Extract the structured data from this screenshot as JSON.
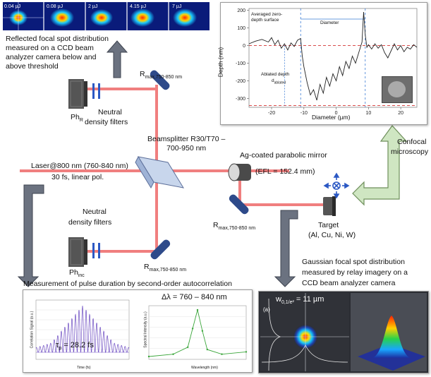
{
  "ccd_strip": {
    "labels": [
      "0.04 µJ",
      "0.08 µJ",
      "2 µJ",
      "4.15 µJ",
      "7 µJ"
    ]
  },
  "captions": {
    "reflected": [
      "Reflected focal spot distribution",
      "measured on a CCD beam",
      "analyzer camera below and",
      "above threshold"
    ],
    "beamsplitter": [
      "Beamsplitter R30/T70 –",
      "700-950 nm"
    ],
    "laser": [
      "Laser@800 nm (760-840 nm)",
      "30 fs, linear pol."
    ],
    "mirror": [
      "Ag-coated parabolic mirror",
      "(EFL = 152.4 mm)"
    ],
    "confocal": [
      "Confocal",
      "microscopy"
    ],
    "target": [
      "Target",
      "(Al, Cu, Ni, W)"
    ],
    "gaussian": [
      "Gaussian focal spot distribution",
      "measured by relay imagery on a",
      "CCD beam analyzer camera"
    ],
    "autocorrelation": "Measurement of pulse duration by second-order autocorrelation"
  },
  "components": {
    "nd_top": [
      "Neutral",
      "density filters"
    ],
    "nd_bottom": [
      "Neutral",
      "density filters"
    ],
    "ph_r": {
      "main": "Ph",
      "sub": "R"
    },
    "ph_inc": {
      "main": "Ph",
      "sub": "inc"
    },
    "rmax_top": {
      "main": "R",
      "sub": "max,750-850 nm"
    },
    "rmax_mid": {
      "main": "R",
      "sub": "max,750-850 nm"
    },
    "rmax_bottom": {
      "main": "R",
      "sub": "max,750-850 nm"
    }
  },
  "depth_plot": {
    "ylabel": "Depth (nm)",
    "xlabel": "Diameter (µm)",
    "annotations": {
      "zero_surface": [
        "Averaged zero-",
        "depth surface"
      ],
      "diameter": "Diameter",
      "ablated": [
        "Ablated depth",
        "d"
      ],
      "ablated_sub": "ablated"
    },
    "yticks": [
      "200",
      "100",
      "0",
      "-100",
      "-200",
      "-300"
    ],
    "xticks": [
      "-20",
      "-10",
      "0",
      "10",
      "20"
    ]
  },
  "chart_data": [
    {
      "type": "line",
      "title": "",
      "xlabel": "Diameter (µm)",
      "ylabel": "Depth (nm)",
      "xlim": [
        -27,
        25
      ],
      "ylim": [
        -350,
        210
      ],
      "x": [
        -27,
        -25,
        -23,
        -21,
        -20,
        -19,
        -18,
        -17,
        -16,
        -15,
        -14,
        -13,
        -12,
        -11,
        -10.5,
        -10,
        -9,
        -8,
        -7,
        -6,
        -5,
        -4,
        -3,
        -2,
        -1,
        0,
        1,
        2,
        3,
        4,
        5,
        6,
        7,
        8,
        8.5,
        9,
        9.5,
        10,
        11,
        12,
        13,
        14,
        15,
        16,
        17,
        18,
        19,
        20,
        21,
        22,
        23,
        24,
        25
      ],
      "y": [
        10,
        25,
        35,
        20,
        45,
        5,
        30,
        -15,
        10,
        -25,
        15,
        -5,
        30,
        40,
        -60,
        -120,
        -210,
        -280,
        -250,
        -310,
        -220,
        -270,
        -180,
        -230,
        -160,
        -200,
        -120,
        -170,
        -90,
        -130,
        -60,
        -100,
        -40,
        20,
        190,
        60,
        -10,
        5,
        -20,
        10,
        -15,
        5,
        -40,
        -70,
        -30,
        10,
        -25,
        0,
        -35,
        -10,
        -20,
        5,
        -10
      ],
      "annotations": [
        "Averaged zero-depth surface",
        "Diameter",
        "Ablated depth d_ablated"
      ]
    },
    {
      "type": "line",
      "title": "",
      "annotation": "τp = 28.2 fs",
      "xlabel": "Time (fs)",
      "ylabel": "Correlation Signal (a.u.)",
      "x": [
        -150,
        -100,
        -50,
        0,
        50,
        100,
        150
      ],
      "y": [
        0.1,
        0.2,
        0.6,
        1.0,
        0.6,
        0.2,
        0.1
      ]
    },
    {
      "type": "line",
      "title": "",
      "annotation": "Δλ = 760 – 840 nm",
      "xlabel": "Wavelength (nm)",
      "ylabel": "Spectral Intensity (a.u.)",
      "x": [
        600,
        700,
        760,
        780,
        800,
        820,
        840,
        900,
        1000
      ],
      "y": [
        0.0,
        0.05,
        0.2,
        0.6,
        1.0,
        0.55,
        0.15,
        0.05,
        0.1
      ]
    }
  ],
  "autocorr": {
    "tau_main": "τ",
    "tau_sub": "p",
    "tau_value": " = 28.2 fs",
    "time_xlabel": "Time (fs)",
    "time_ylabel": "Correlation Signal (a.u.)",
    "delta": "Δλ = 760 – 840 nm",
    "spec_xlabel": "Wavelength (nm)",
    "spec_ylabel": "Spectral Intensity (a.u.)"
  },
  "gaussian_panel": {
    "tag": "(a)",
    "w_main": "w",
    "w_sub": "0,1/e²",
    "w_value": " = 11 µm"
  },
  "colors": {
    "beam": "#f07f7f",
    "arrow": "#6b7280",
    "confocal_arrow": "#cfe6c2",
    "mirror": "#2e4a8a"
  }
}
